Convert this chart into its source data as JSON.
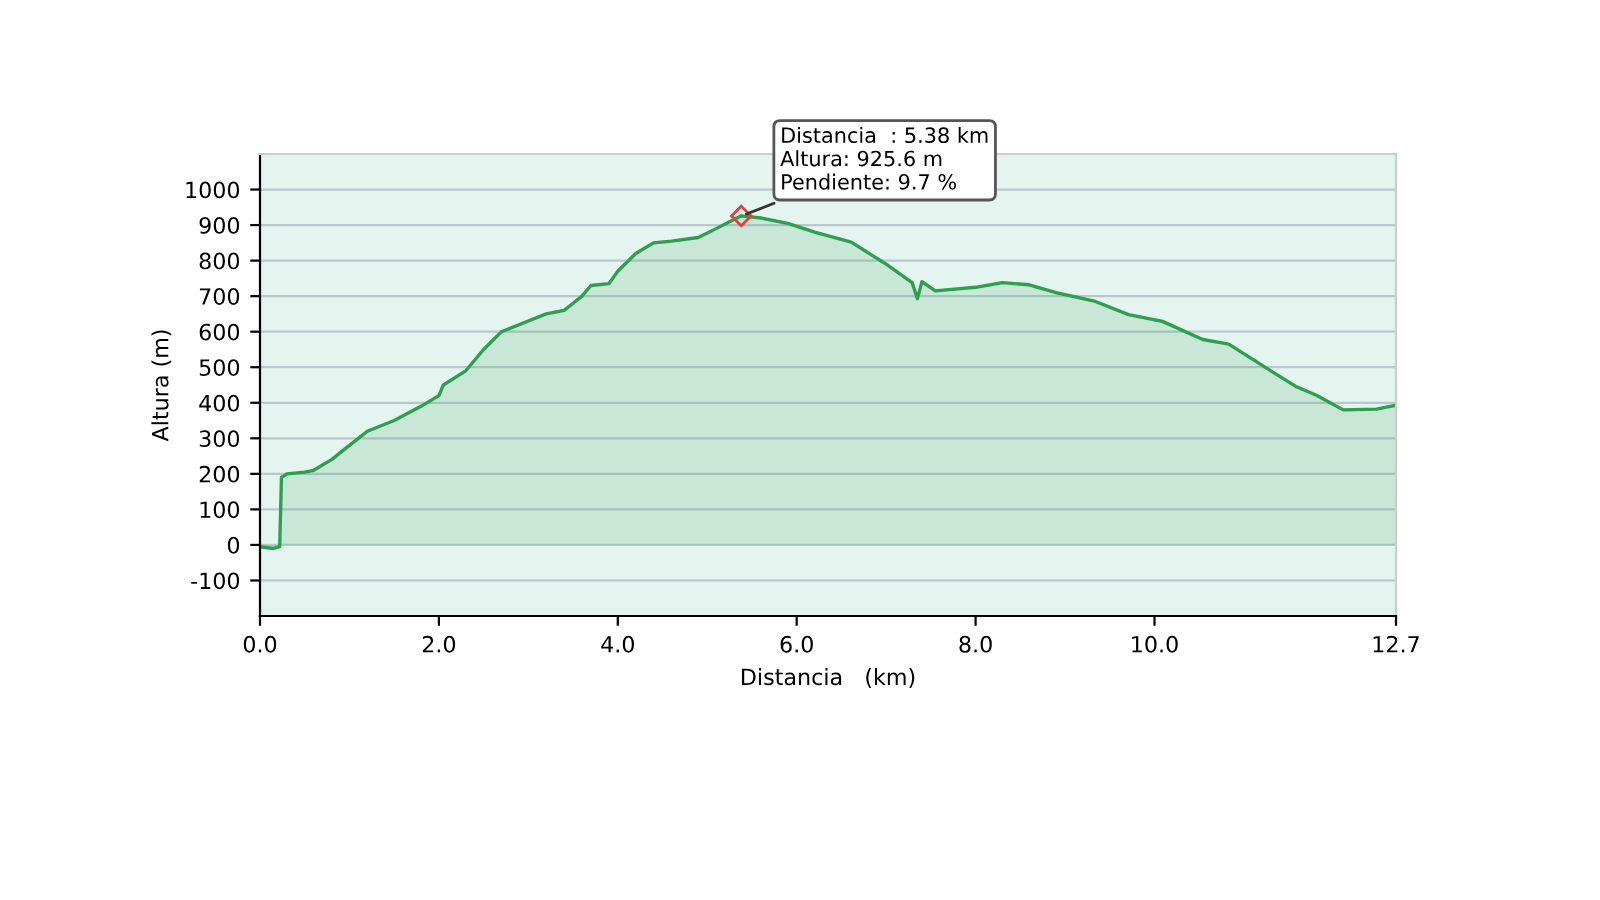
{
  "chart_data": {
    "type": "area",
    "xlabel": "Distancia   (km)",
    "ylabel": "Altura (m)",
    "series": [
      {
        "color": "#2e9e4f",
        "x": [
          0,
          0.15,
          0.22,
          0.24,
          0.3,
          0.5,
          0.6,
          0.8,
          1.0,
          1.2,
          1.5,
          1.8,
          2.0,
          2.05,
          2.3,
          2.5,
          2.7,
          3.0,
          3.2,
          3.4,
          3.5,
          3.6,
          3.7,
          3.9,
          4.0,
          4.2,
          4.4,
          4.6,
          4.9,
          5.1,
          5.38,
          5.6,
          5.9,
          6.2,
          6.61,
          7.0,
          7.29,
          7.35,
          7.4,
          7.55,
          8.0,
          8.3,
          8.6,
          8.9,
          9.34,
          9.71,
          10.09,
          10.54,
          10.83,
          11.28,
          11.58,
          11.81,
          12.11,
          12.48,
          12.7
        ],
        "values": [
          -5,
          -10,
          -5,
          190,
          200,
          205,
          210,
          240,
          280,
          320,
          350,
          390,
          420,
          450,
          490,
          550,
          600,
          630,
          650,
          660,
          680,
          700,
          730,
          735,
          770,
          820,
          850,
          855,
          865,
          890,
          926,
          920,
          905,
          880,
          852,
          790,
          738,
          693,
          741,
          715,
          725,
          738,
          732,
          710,
          685,
          648,
          629,
          578,
          565,
          493,
          446,
          421,
          380,
          382,
          393
        ]
      }
    ],
    "xlim": [
      0,
      12.7
    ],
    "xticks": [
      {
        "value": 0,
        "label": "0.0"
      },
      {
        "value": 2,
        "label": "2.0"
      },
      {
        "value": 4,
        "label": "4.0"
      },
      {
        "value": 6,
        "label": "6.0"
      },
      {
        "value": 8,
        "label": "8.0"
      },
      {
        "value": 10,
        "label": "10.0"
      },
      {
        "value": 12.7,
        "label": "12.7"
      }
    ],
    "ylim": [
      -200,
      1100
    ],
    "yticks": [
      -100,
      0,
      100,
      200,
      300,
      400,
      500,
      600,
      700,
      800,
      900,
      1000
    ],
    "grid": "y",
    "annotations": [
      {
        "text": "Distancia  : 5.38 km\nAltura: 925.6 m\nPendiente: 9.7 %",
        "x": 5.38,
        "y": 925.6
      }
    ]
  }
}
